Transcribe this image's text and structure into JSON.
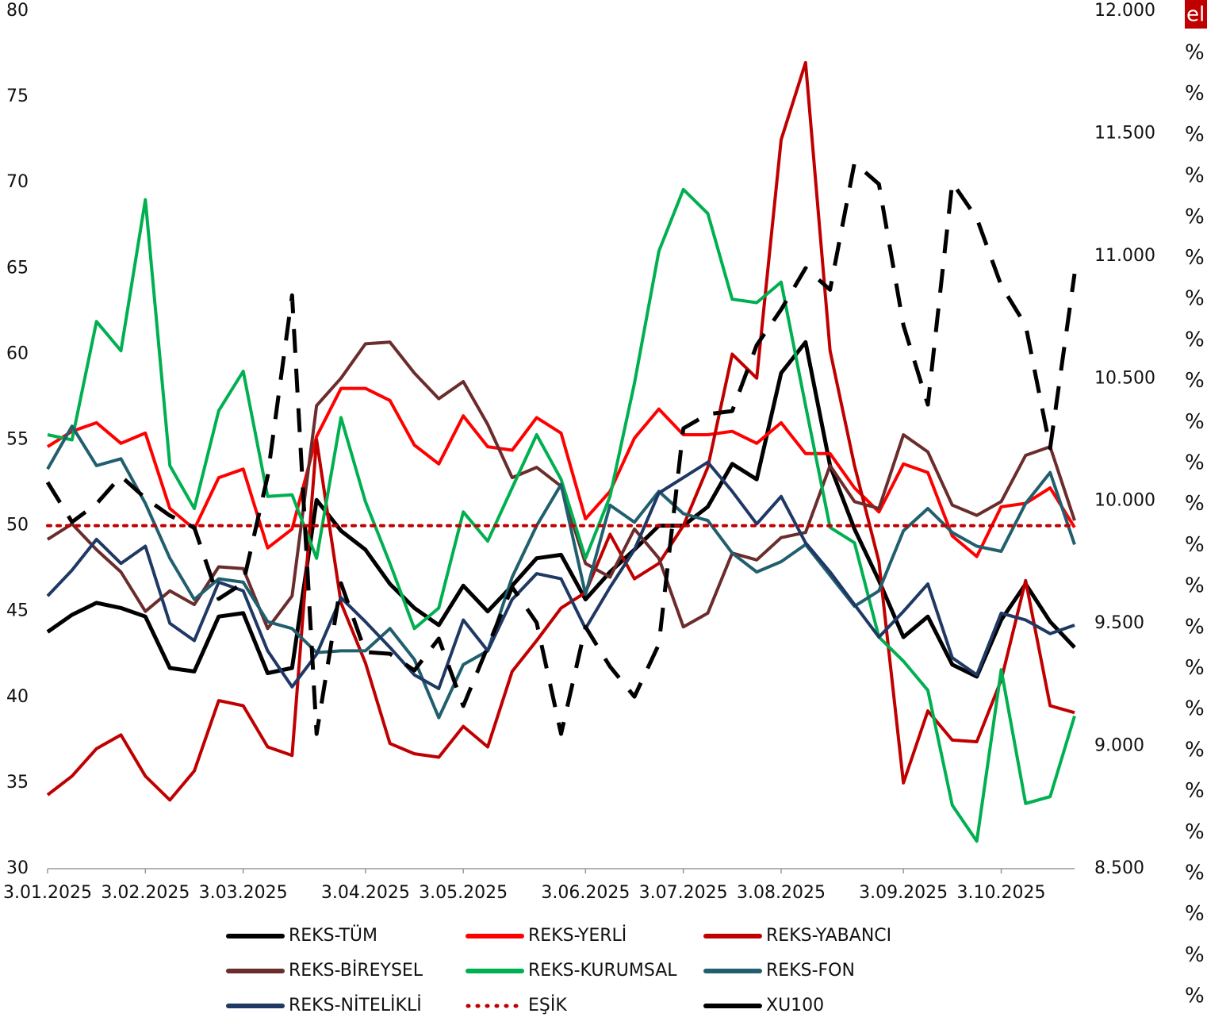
{
  "chart_data": {
    "type": "line",
    "categories": [
      "3.01.2025",
      null,
      null,
      null,
      "3.02.2025",
      null,
      null,
      null,
      "3.03.2025",
      null,
      null,
      null,
      null,
      "3.04.2025",
      null,
      null,
      null,
      "3.05.2025",
      null,
      null,
      null,
      null,
      "3.06.2025",
      null,
      null,
      null,
      "3.07.2025",
      null,
      null,
      null,
      "3.08.2025",
      null,
      null,
      null,
      null,
      "3.09.2025",
      null,
      null,
      null,
      "3.10.2025",
      null,
      null,
      null
    ],
    "ylim": [
      30,
      80
    ],
    "yticks": [
      30,
      35,
      40,
      45,
      50,
      55,
      60,
      65,
      70,
      75,
      80
    ],
    "y2lim": [
      8500,
      12000
    ],
    "y2ticks": [
      {
        "value": 8500,
        "label": "8.500"
      },
      {
        "value": 9000,
        "label": "9.000"
      },
      {
        "value": 9500,
        "label": "9.500"
      },
      {
        "value": 10000,
        "label": "10.000"
      },
      {
        "value": 10500,
        "label": "10.500"
      },
      {
        "value": 11000,
        "label": "11.000"
      },
      {
        "value": 11500,
        "label": "11.500"
      },
      {
        "value": 12000,
        "label": "12.000"
      }
    ],
    "grid": false,
    "legend": "bottom",
    "series": [
      {
        "name": "REKS-TÜM",
        "color": "#000000",
        "width": 5,
        "style": "solid",
        "values": [
          43.8,
          44.8,
          45.5,
          45.2,
          44.7,
          41.7,
          41.5,
          44.7,
          44.9,
          41.4,
          41.7,
          51.5,
          49.7,
          48.6,
          46.6,
          45.2,
          44.2,
          46.5,
          45.0,
          46.5,
          48.1,
          48.3,
          45.7,
          47.3,
          48.6,
          50.0,
          50.0,
          51.1,
          53.6,
          52.7,
          58.9,
          60.7,
          53.5,
          49.8,
          46.8,
          43.5,
          44.7,
          41.9,
          41.2,
          44.5,
          46.6,
          44.4,
          42.9
        ]
      },
      {
        "name": "REKS-YERLİ",
        "color": "#ff0000",
        "width": 4,
        "style": "solid",
        "values": [
          54.6,
          55.5,
          56.0,
          54.8,
          55.4,
          51.0,
          49.8,
          52.8,
          53.3,
          48.7,
          49.8,
          55.2,
          58.0,
          58.0,
          57.3,
          54.7,
          53.6,
          56.4,
          54.6,
          54.4,
          56.3,
          55.4,
          50.4,
          52.0,
          55.1,
          56.8,
          55.3,
          55.3,
          55.5,
          54.8,
          56.0,
          54.2,
          54.2,
          52.2,
          50.8,
          53.6,
          53.1,
          49.4,
          48.2,
          51.1,
          51.3,
          52.2,
          49.9
        ]
      },
      {
        "name": "REKS-YABANCI",
        "color": "#c00000",
        "width": 4,
        "style": "solid",
        "values": [
          34.3,
          35.4,
          37.0,
          37.8,
          35.4,
          34.0,
          35.7,
          39.8,
          39.5,
          37.1,
          36.6,
          55.0,
          45.5,
          42.0,
          37.3,
          36.7,
          36.5,
          38.3,
          37.1,
          41.5,
          43.3,
          45.2,
          46.1,
          49.5,
          46.9,
          47.8,
          50.0,
          53.4,
          60.0,
          58.6,
          72.5,
          77.0,
          60.2,
          53.5,
          47.9,
          35.0,
          39.2,
          37.5,
          37.4,
          41.0,
          46.8,
          39.5,
          39.1
        ]
      },
      {
        "name": "REKS-BİREYSEL",
        "color": "#6b2c2c",
        "width": 4,
        "style": "solid",
        "values": [
          49.2,
          50.1,
          48.6,
          47.3,
          45.0,
          46.2,
          45.4,
          47.6,
          47.5,
          44.0,
          45.9,
          57.0,
          58.6,
          60.6,
          60.7,
          58.9,
          57.4,
          58.4,
          55.9,
          52.8,
          53.4,
          52.3,
          47.8,
          47.0,
          49.8,
          48.1,
          44.1,
          44.9,
          48.4,
          48.0,
          49.3,
          49.6,
          53.5,
          51.4,
          51.0,
          55.3,
          54.3,
          51.2,
          50.6,
          51.4,
          54.1,
          54.6,
          50.3
        ]
      },
      {
        "name": "REKS-KURUMSAL",
        "color": "#00b050",
        "width": 4,
        "style": "solid",
        "values": [
          55.3,
          55.0,
          61.9,
          60.2,
          69.0,
          53.5,
          51.0,
          56.7,
          59.0,
          51.7,
          51.8,
          48.1,
          56.3,
          51.4,
          47.8,
          44.0,
          45.2,
          50.8,
          49.1,
          52.2,
          55.3,
          52.7,
          48.1,
          51.7,
          58.3,
          66.0,
          69.6,
          68.2,
          63.2,
          63.0,
          64.2,
          57.0,
          49.9,
          49.0,
          43.5,
          42.1,
          40.4,
          33.7,
          31.6,
          41.6,
          33.8,
          34.2,
          38.9
        ]
      },
      {
        "name": "REKS-FON",
        "color": "#215f6e",
        "width": 4,
        "style": "solid",
        "values": [
          53.3,
          55.8,
          53.5,
          53.9,
          51.3,
          48.1,
          45.7,
          46.9,
          46.7,
          44.4,
          44.0,
          42.6,
          42.7,
          42.7,
          44.0,
          42.2,
          38.8,
          41.9,
          42.7,
          47.0,
          50.0,
          52.4,
          46.0,
          51.2,
          50.2,
          52.0,
          50.7,
          50.3,
          48.4,
          47.3,
          47.9,
          48.9,
          47.1,
          45.3,
          46.2,
          49.7,
          51.0,
          49.6,
          48.8,
          48.5,
          51.3,
          53.1,
          48.9
        ]
      },
      {
        "name": "REKS-NİTELİKLİ",
        "color": "#1f3864",
        "width": 4,
        "style": "solid",
        "values": [
          45.9,
          47.4,
          49.2,
          47.8,
          48.8,
          44.3,
          43.3,
          46.7,
          46.2,
          42.7,
          40.6,
          42.5,
          45.8,
          44.4,
          42.9,
          41.3,
          40.5,
          44.5,
          42.7,
          45.7,
          47.2,
          46.9,
          44.0,
          46.4,
          48.6,
          51.9,
          52.8,
          53.7,
          52.0,
          50.1,
          51.7,
          49.0,
          47.3,
          45.4,
          43.5,
          45.0,
          46.6,
          42.3,
          41.3,
          44.9,
          44.5,
          43.7,
          44.2
        ]
      },
      {
        "name": "EŞİK",
        "color": "#c00000",
        "width": 4,
        "style": "dotted",
        "values": [
          50,
          50,
          50,
          50,
          50,
          50,
          50,
          50,
          50,
          50,
          50,
          50,
          50,
          50,
          50,
          50,
          50,
          50,
          50,
          50,
          50,
          50,
          50,
          50,
          50,
          50,
          50,
          50,
          50,
          50,
          50,
          50,
          50,
          50,
          50,
          50,
          50,
          50,
          50,
          50,
          50,
          50,
          50
        ]
      },
      {
        "name": "XU100",
        "color": "#000000",
        "width": 5,
        "style": "dashed",
        "axis": "y2",
        "values": [
          10077,
          9915,
          9989,
          10102,
          10012,
          9941,
          9892,
          9601,
          9666,
          10102,
          10840,
          9050,
          9665,
          9384,
          9377,
          9309,
          9439,
          9164,
          9406,
          9649,
          9504,
          9050,
          9487,
          9325,
          9202,
          9416,
          10297,
          10355,
          10368,
          10637,
          10782,
          10951,
          10863,
          11381,
          11294,
          10718,
          10394,
          11300,
          11155,
          10880,
          10718,
          10216,
          10928
        ]
      }
    ],
    "edge_labels": {
      "badge": "el",
      "marks": [
        "%",
        "%",
        "%",
        "%",
        "%",
        "%",
        "%",
        "%",
        "%",
        "%",
        "%",
        "%",
        "%",
        "%",
        "%",
        "%",
        "%",
        "%",
        "%",
        "%",
        "%",
        "%",
        "%",
        "%"
      ]
    }
  }
}
